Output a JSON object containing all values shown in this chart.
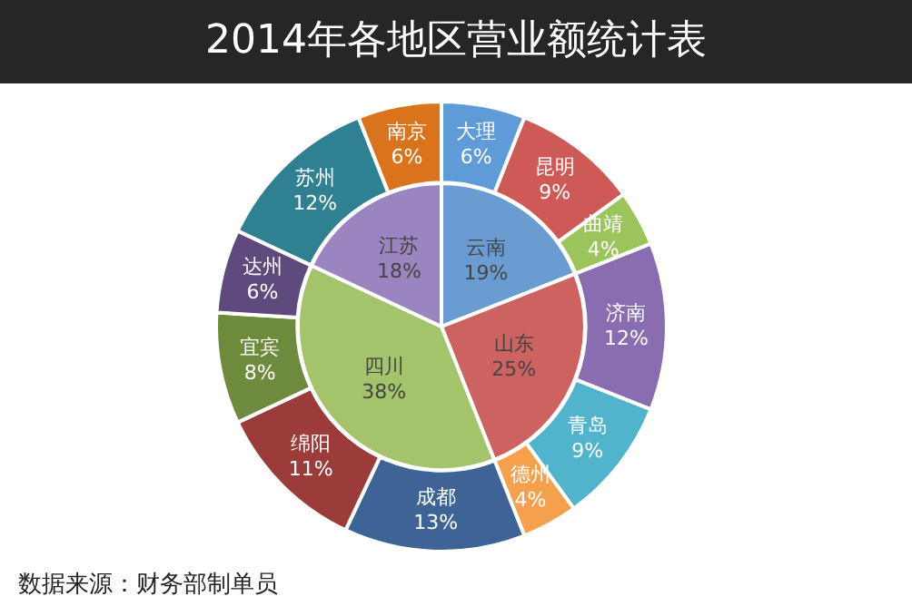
{
  "chart_data": [
    {
      "type": "pie",
      "title": "2014年各地区营业额统计表",
      "data_labels": true,
      "categories": [
        "云南",
        "山东",
        "四川",
        "江苏"
      ],
      "values": [
        19,
        25,
        38,
        18
      ],
      "value_labels": [
        "19%",
        "25%",
        "38%",
        "18%"
      ],
      "colors": [
        "#6a9bd1",
        "#cd6360",
        "#a4c46b",
        "#9b85c0"
      ]
    },
    {
      "type": "donut",
      "data_labels": true,
      "annotations": [
        "数据来源：财务部制单员"
      ],
      "categories": [
        "大理",
        "昆明",
        "曲靖",
        "济南",
        "青岛",
        "德州",
        "成都",
        "绵阳",
        "宜宾",
        "达州",
        "苏州",
        "南京"
      ],
      "values": [
        6,
        9,
        4,
        12,
        9,
        4,
        13,
        11,
        8,
        6,
        12,
        6
      ],
      "value_labels": [
        "6%",
        "9%",
        "4%",
        "12%",
        "9%",
        "4%",
        "13%",
        "11%",
        "8%",
        "6%",
        "12%",
        "6%"
      ],
      "colors": [
        "#5f9bd6",
        "#cd5a57",
        "#9cc45c",
        "#8a6cb0",
        "#52b4cc",
        "#f5a04d",
        "#3e6496",
        "#9b3b3a",
        "#6e8b3d",
        "#5e4a7c",
        "#2f8192",
        "#d9731c"
      ]
    }
  ]
}
